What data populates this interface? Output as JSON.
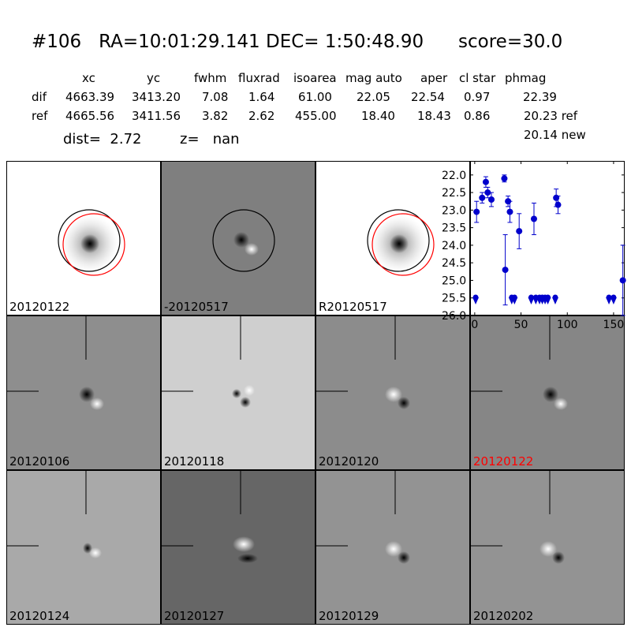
{
  "title": {
    "id": "#106",
    "ra": "RA=10:01:29.141",
    "dec": "DEC= 1:50:48.90",
    "score": "score=30.0"
  },
  "table": {
    "columns": [
      "xc",
      "yc",
      "fwhm",
      "fluxrad",
      "isoarea",
      "mag auto",
      "aper",
      "cl star",
      "phmag"
    ],
    "rows": [
      {
        "label": "dif",
        "values": [
          "4663.39",
          "3413.20",
          "7.08",
          "1.64",
          "61.00",
          "22.05",
          "22.54",
          "0.97",
          "22.39"
        ]
      },
      {
        "label": "ref",
        "values": [
          "4665.56",
          "3411.56",
          "3.82",
          "2.62",
          "455.00",
          "18.40",
          "18.43",
          "0.86",
          "20.23 ref"
        ]
      }
    ],
    "extra": "20.14 new"
  },
  "dist": {
    "label": "dist=",
    "value": "2.72"
  },
  "z": {
    "label": "z=",
    "value": "nan"
  },
  "panels": [
    {
      "label": "20120122",
      "bg": "#ffffff",
      "kind": "star",
      "circles": true
    },
    {
      "label": "-20120517",
      "bg": "#7f7f7f",
      "kind": "dipole_dark",
      "circles": true
    },
    {
      "label": "R20120517",
      "bg": "#ffffff",
      "kind": "star",
      "circles": true
    },
    {
      "label": "20120106",
      "bg": "#8e8e8e",
      "kind": "dipole_dark",
      "circles": false
    },
    {
      "label": "20120118",
      "bg": "#cfcfcf",
      "kind": "dipole_multi",
      "circles": false
    },
    {
      "label": "20120120",
      "bg": "#8c8c8c",
      "kind": "dipole_bright",
      "circles": false
    },
    {
      "label": "20120122",
      "bg": "#868686",
      "kind": "dipole_dark",
      "circles": false,
      "highlight": true
    },
    {
      "label": "20120124",
      "bg": "#a9a9a9",
      "kind": "dipole_small",
      "circles": false
    },
    {
      "label": "20120127",
      "bg": "#666666",
      "kind": "dipole_big",
      "circles": false
    },
    {
      "label": "20120129",
      "bg": "#939393",
      "kind": "dipole_bright",
      "circles": false
    },
    {
      "label": "20120202",
      "bg": "#939393",
      "kind": "dipole_bright",
      "circles": false
    }
  ],
  "colors": {
    "highlight_label": "#ff0000",
    "series": "#0000cc",
    "red_circle": "#ff0000"
  },
  "chart_data": {
    "type": "scatter",
    "xlim": [
      -5,
      162
    ],
    "ylim": [
      26.0,
      21.6
    ],
    "y_inverted": true,
    "xticks": [
      0,
      50,
      100,
      150
    ],
    "yticks": [
      "22.0",
      "22.5",
      "23.0",
      "23.5",
      "24.0",
      "24.5",
      "25.0",
      "25.5",
      "26.0"
    ],
    "grid": false,
    "detections": [
      {
        "x": 2,
        "y": 23.05,
        "err": 0.3
      },
      {
        "x": 8,
        "y": 22.65,
        "err": 0.15
      },
      {
        "x": 12,
        "y": 22.2,
        "err": 0.15
      },
      {
        "x": 14,
        "y": 22.5,
        "err": 0.15
      },
      {
        "x": 18,
        "y": 22.7,
        "err": 0.2
      },
      {
        "x": 32,
        "y": 22.1,
        "err": 0.1
      },
      {
        "x": 33,
        "y": 24.7,
        "err": 1.0
      },
      {
        "x": 36,
        "y": 22.75,
        "err": 0.15
      },
      {
        "x": 38,
        "y": 23.05,
        "err": 0.3
      },
      {
        "x": 48,
        "y": 23.6,
        "err": 0.5
      },
      {
        "x": 64,
        "y": 23.25,
        "err": 0.45
      },
      {
        "x": 88,
        "y": 22.65,
        "err": 0.25
      },
      {
        "x": 90,
        "y": 22.85,
        "err": 0.25
      },
      {
        "x": 160,
        "y": 25.0,
        "err": 1.0
      }
    ],
    "upper_limits": [
      {
        "x": 1,
        "y": 25.55
      },
      {
        "x": 40,
        "y": 25.55
      },
      {
        "x": 43,
        "y": 25.55
      },
      {
        "x": 61,
        "y": 25.55
      },
      {
        "x": 66,
        "y": 25.55
      },
      {
        "x": 70,
        "y": 25.55
      },
      {
        "x": 73,
        "y": 25.55
      },
      {
        "x": 76,
        "y": 25.55
      },
      {
        "x": 79,
        "y": 25.55
      },
      {
        "x": 87,
        "y": 25.55
      },
      {
        "x": 145,
        "y": 25.55
      },
      {
        "x": 150,
        "y": 25.55
      }
    ]
  }
}
